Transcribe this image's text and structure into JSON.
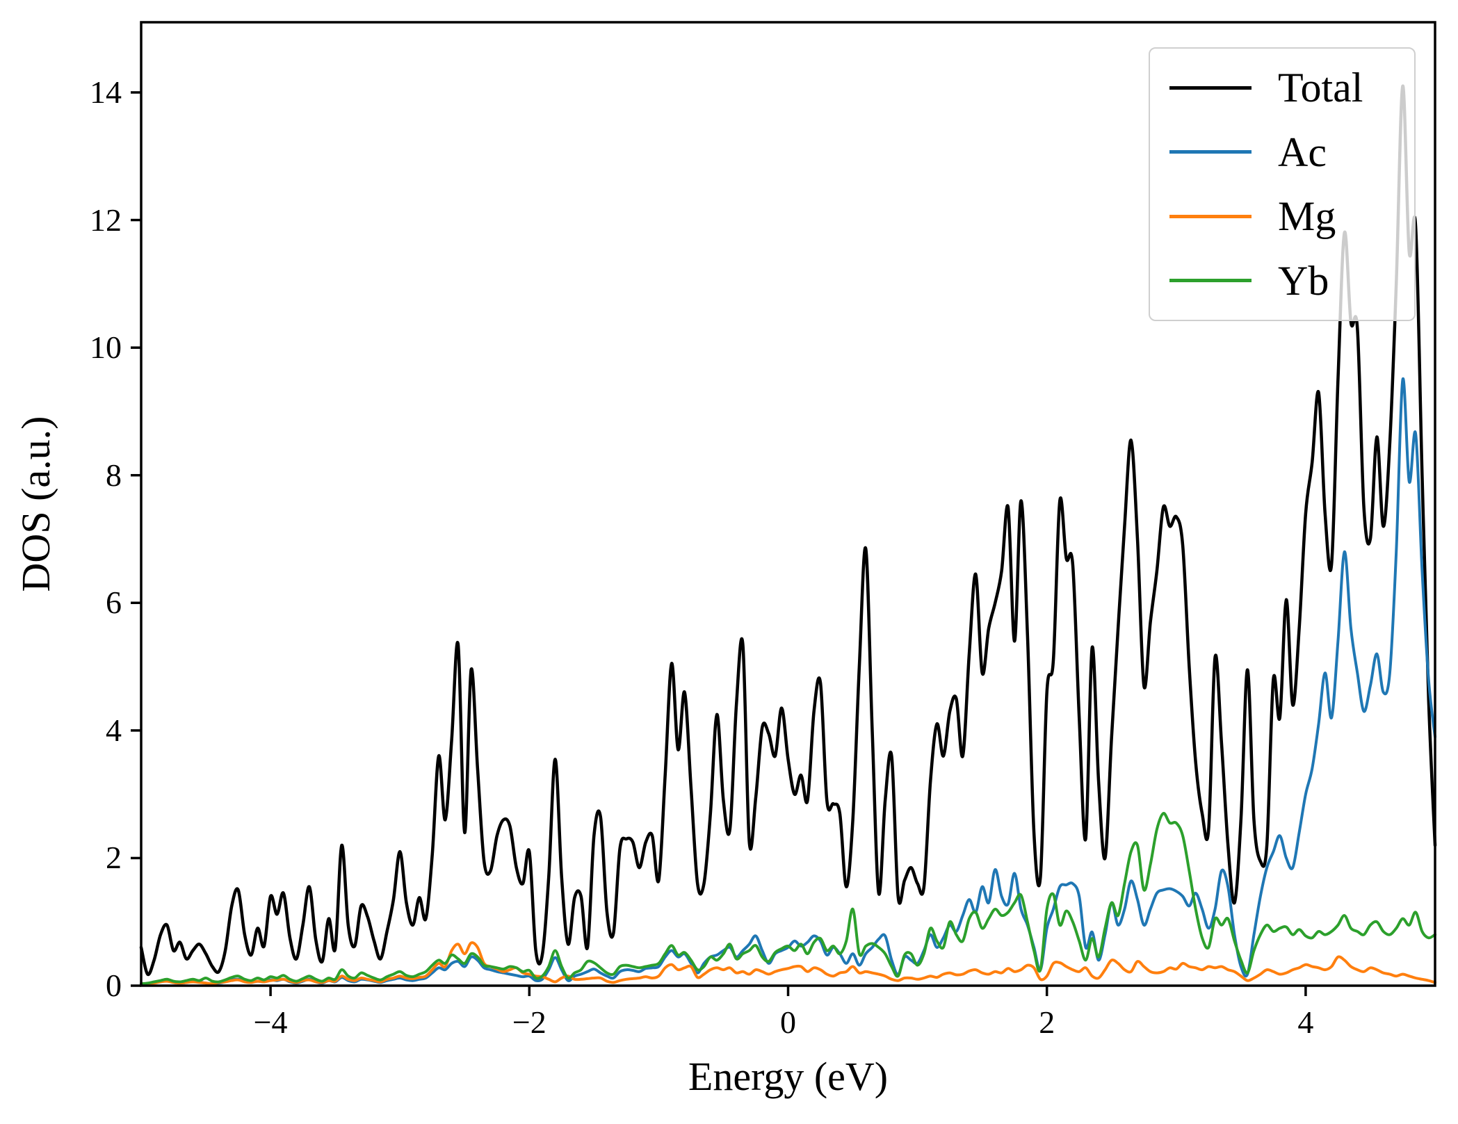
{
  "figure": {
    "background": "#ffffff"
  },
  "chart_data": {
    "type": "line",
    "title": "",
    "xlabel": "Energy (eV)",
    "ylabel": "DOS (a.u.)",
    "xlim": [
      -5,
      5
    ],
    "ylim": [
      0,
      15.1
    ],
    "xticks": [
      -4,
      -2,
      0,
      2,
      4
    ],
    "xtick_labels": [
      "−4",
      "−2",
      "0",
      "2",
      "4"
    ],
    "yticks": [
      0,
      2,
      4,
      6,
      8,
      10,
      12,
      14
    ],
    "ytick_labels": [
      "0",
      "2",
      "4",
      "6",
      "8",
      "10",
      "12",
      "14"
    ],
    "grid": false,
    "legend": {
      "position": "upper right",
      "frame": true,
      "entries": [
        "Total",
        "Ac",
        "Mg",
        "Yb"
      ]
    },
    "x_start": -5.0,
    "x_step": 0.05,
    "n_points": 201,
    "series": [
      {
        "name": "Total",
        "color": "#000000",
        "line_width": 4.5,
        "values": [
          0.6,
          0.18,
          0.4,
          0.8,
          0.95,
          0.55,
          0.68,
          0.42,
          0.55,
          0.65,
          0.5,
          0.3,
          0.22,
          0.55,
          1.25,
          1.5,
          0.8,
          0.48,
          0.9,
          0.62,
          1.4,
          1.12,
          1.45,
          0.75,
          0.42,
          0.95,
          1.55,
          0.72,
          0.38,
          1.05,
          0.58,
          2.2,
          0.95,
          0.62,
          1.25,
          1.08,
          0.7,
          0.42,
          0.85,
          1.35,
          2.1,
          1.3,
          0.95,
          1.38,
          1.05,
          2.05,
          3.6,
          2.6,
          3.85,
          5.35,
          2.4,
          4.95,
          3.4,
          1.95,
          1.8,
          2.35,
          2.6,
          2.5,
          1.85,
          1.6,
          2.1,
          0.55,
          0.48,
          1.7,
          3.55,
          1.7,
          0.65,
          1.38,
          1.4,
          0.6,
          2.35,
          2.65,
          1.15,
          0.82,
          2.15,
          2.3,
          2.25,
          1.85,
          2.25,
          2.35,
          1.65,
          3.3,
          5.05,
          3.7,
          4.6,
          3.1,
          1.6,
          1.6,
          2.7,
          4.25,
          2.9,
          2.45,
          4.4,
          5.35,
          2.25,
          2.95,
          4.05,
          3.95,
          3.6,
          4.35,
          3.55,
          3.0,
          3.3,
          2.9,
          4.3,
          4.75,
          2.9,
          2.85,
          2.7,
          1.55,
          2.6,
          5.0,
          6.85,
          4.0,
          1.45,
          2.9,
          3.6,
          1.4,
          1.65,
          1.85,
          1.6,
          1.55,
          3.2,
          4.1,
          3.6,
          4.3,
          4.5,
          3.6,
          5.2,
          6.45,
          4.9,
          5.6,
          6.0,
          6.5,
          7.5,
          5.4,
          7.6,
          5.5,
          2.4,
          1.7,
          4.6,
          5.1,
          7.6,
          6.7,
          6.6,
          4.2,
          2.3,
          5.3,
          3.2,
          2.0,
          3.9,
          5.6,
          7.2,
          8.55,
          7.0,
          4.7,
          5.7,
          6.5,
          7.5,
          7.2,
          7.35,
          6.9,
          5.0,
          3.5,
          2.7,
          2.45,
          5.15,
          3.8,
          2.2,
          1.3,
          2.6,
          4.95,
          2.6,
          1.95,
          2.2,
          4.8,
          4.2,
          6.05,
          4.4,
          5.6,
          7.4,
          8.2,
          9.3,
          7.4,
          6.6,
          9.5,
          11.8,
          10.4,
          10.3,
          7.5,
          7.0,
          8.6,
          7.2,
          8.5,
          11.0,
          14.1,
          11.5,
          11.9,
          8.0,
          4.5,
          2.2
        ]
      },
      {
        "name": "Ac",
        "color": "#1f77b4",
        "line_width": 4,
        "values": [
          0.02,
          0.03,
          0.05,
          0.06,
          0.08,
          0.05,
          0.04,
          0.05,
          0.07,
          0.06,
          0.04,
          0.03,
          0.04,
          0.06,
          0.09,
          0.1,
          0.07,
          0.05,
          0.07,
          0.06,
          0.09,
          0.08,
          0.1,
          0.06,
          0.04,
          0.07,
          0.1,
          0.06,
          0.04,
          0.08,
          0.06,
          0.13,
          0.08,
          0.06,
          0.1,
          0.09,
          0.07,
          0.05,
          0.08,
          0.1,
          0.12,
          0.09,
          0.08,
          0.1,
          0.12,
          0.2,
          0.28,
          0.25,
          0.35,
          0.38,
          0.3,
          0.45,
          0.4,
          0.28,
          0.25,
          0.22,
          0.2,
          0.18,
          0.16,
          0.14,
          0.15,
          0.08,
          0.1,
          0.25,
          0.44,
          0.25,
          0.08,
          0.15,
          0.18,
          0.22,
          0.26,
          0.2,
          0.15,
          0.12,
          0.22,
          0.25,
          0.24,
          0.22,
          0.27,
          0.28,
          0.3,
          0.45,
          0.55,
          0.45,
          0.5,
          0.35,
          0.2,
          0.35,
          0.45,
          0.48,
          0.55,
          0.6,
          0.45,
          0.55,
          0.65,
          0.78,
          0.55,
          0.35,
          0.5,
          0.55,
          0.6,
          0.7,
          0.62,
          0.68,
          0.78,
          0.7,
          0.48,
          0.6,
          0.5,
          0.35,
          0.5,
          0.32,
          0.5,
          0.6,
          0.73,
          0.78,
          0.4,
          0.18,
          0.45,
          0.4,
          0.35,
          0.55,
          0.8,
          0.6,
          0.75,
          0.95,
          0.85,
          1.1,
          1.35,
          1.15,
          1.55,
          1.3,
          1.82,
          1.4,
          1.28,
          1.76,
          1.2,
          0.95,
          0.6,
          0.25,
          0.9,
          1.2,
          1.55,
          1.58,
          1.6,
          1.4,
          0.6,
          0.84,
          0.4,
          0.8,
          1.3,
          0.95,
          1.2,
          1.64,
          1.35,
          0.95,
          1.2,
          1.45,
          1.5,
          1.52,
          1.48,
          1.4,
          1.25,
          1.45,
          1.2,
          0.9,
          1.2,
          1.8,
          1.55,
          0.8,
          0.3,
          0.18,
          0.8,
          1.4,
          1.85,
          2.1,
          2.35,
          2.0,
          1.85,
          2.4,
          3.0,
          3.4,
          4.1,
          4.9,
          4.2,
          5.4,
          6.8,
          5.6,
          4.9,
          4.3,
          4.7,
          5.2,
          4.6,
          4.9,
          6.8,
          9.5,
          7.9,
          8.65,
          6.5,
          4.8,
          3.9
        ]
      },
      {
        "name": "Mg",
        "color": "#ff7f0e",
        "line_width": 4,
        "values": [
          0.02,
          0.03,
          0.04,
          0.06,
          0.07,
          0.05,
          0.04,
          0.05,
          0.06,
          0.05,
          0.04,
          0.03,
          0.05,
          0.06,
          0.08,
          0.09,
          0.06,
          0.05,
          0.07,
          0.06,
          0.08,
          0.09,
          0.1,
          0.07,
          0.05,
          0.08,
          0.09,
          0.06,
          0.05,
          0.08,
          0.07,
          0.15,
          0.1,
          0.08,
          0.12,
          0.1,
          0.08,
          0.06,
          0.1,
          0.12,
          0.15,
          0.12,
          0.11,
          0.13,
          0.15,
          0.25,
          0.35,
          0.3,
          0.55,
          0.65,
          0.5,
          0.67,
          0.6,
          0.35,
          0.3,
          0.26,
          0.22,
          0.25,
          0.28,
          0.2,
          0.18,
          0.15,
          0.14,
          0.1,
          0.06,
          0.12,
          0.15,
          0.1,
          0.1,
          0.11,
          0.12,
          0.12,
          0.07,
          0.05,
          0.08,
          0.1,
          0.11,
          0.12,
          0.14,
          0.12,
          0.15,
          0.28,
          0.33,
          0.25,
          0.28,
          0.3,
          0.13,
          0.18,
          0.25,
          0.28,
          0.25,
          0.28,
          0.2,
          0.22,
          0.18,
          0.25,
          0.22,
          0.18,
          0.22,
          0.25,
          0.27,
          0.3,
          0.3,
          0.22,
          0.28,
          0.25,
          0.18,
          0.15,
          0.2,
          0.22,
          0.3,
          0.2,
          0.22,
          0.2,
          0.18,
          0.15,
          0.1,
          0.08,
          0.12,
          0.12,
          0.1,
          0.12,
          0.15,
          0.13,
          0.18,
          0.2,
          0.17,
          0.18,
          0.23,
          0.25,
          0.2,
          0.18,
          0.22,
          0.2,
          0.27,
          0.22,
          0.25,
          0.32,
          0.28,
          0.1,
          0.15,
          0.35,
          0.36,
          0.3,
          0.25,
          0.22,
          0.28,
          0.15,
          0.12,
          0.25,
          0.4,
          0.35,
          0.25,
          0.22,
          0.38,
          0.3,
          0.22,
          0.2,
          0.22,
          0.28,
          0.26,
          0.35,
          0.3,
          0.28,
          0.25,
          0.3,
          0.28,
          0.3,
          0.25,
          0.22,
          0.15,
          0.08,
          0.12,
          0.18,
          0.25,
          0.22,
          0.18,
          0.2,
          0.25,
          0.28,
          0.33,
          0.3,
          0.28,
          0.25,
          0.3,
          0.45,
          0.4,
          0.3,
          0.25,
          0.22,
          0.28,
          0.25,
          0.2,
          0.18,
          0.15,
          0.18,
          0.15,
          0.12,
          0.1,
          0.08,
          0.05
        ]
      },
      {
        "name": "Yb",
        "color": "#2ca02c",
        "line_width": 4,
        "values": [
          0.03,
          0.04,
          0.06,
          0.08,
          0.1,
          0.07,
          0.06,
          0.08,
          0.1,
          0.08,
          0.12,
          0.07,
          0.06,
          0.09,
          0.13,
          0.15,
          0.1,
          0.08,
          0.12,
          0.09,
          0.14,
          0.12,
          0.16,
          0.1,
          0.07,
          0.11,
          0.15,
          0.1,
          0.07,
          0.12,
          0.1,
          0.25,
          0.15,
          0.12,
          0.2,
          0.16,
          0.12,
          0.09,
          0.14,
          0.18,
          0.22,
          0.16,
          0.14,
          0.18,
          0.22,
          0.32,
          0.4,
          0.35,
          0.48,
          0.42,
          0.35,
          0.5,
          0.45,
          0.32,
          0.3,
          0.28,
          0.26,
          0.3,
          0.28,
          0.22,
          0.24,
          0.12,
          0.15,
          0.3,
          0.55,
          0.3,
          0.12,
          0.2,
          0.25,
          0.38,
          0.36,
          0.28,
          0.2,
          0.18,
          0.3,
          0.32,
          0.3,
          0.28,
          0.3,
          0.32,
          0.35,
          0.5,
          0.63,
          0.48,
          0.52,
          0.4,
          0.25,
          0.3,
          0.45,
          0.4,
          0.5,
          0.65,
          0.42,
          0.5,
          0.55,
          0.63,
          0.45,
          0.38,
          0.52,
          0.58,
          0.62,
          0.55,
          0.65,
          0.5,
          0.68,
          0.74,
          0.55,
          0.62,
          0.5,
          0.7,
          1.2,
          0.5,
          0.62,
          0.66,
          0.6,
          0.5,
          0.3,
          0.15,
          0.48,
          0.5,
          0.32,
          0.5,
          0.9,
          0.7,
          0.6,
          1.0,
          0.8,
          0.7,
          1.05,
          1.15,
          0.9,
          1.05,
          1.2,
          1.1,
          1.15,
          1.3,
          1.42,
          1.0,
          0.55,
          0.25,
          1.2,
          1.43,
          0.95,
          1.17,
          1.0,
          0.7,
          0.4,
          0.74,
          0.45,
          0.9,
          1.3,
          1.1,
          1.6,
          2.1,
          2.2,
          1.5,
          1.9,
          2.45,
          2.7,
          2.55,
          2.55,
          2.35,
          1.8,
          1.2,
          0.75,
          0.6,
          1.05,
          0.95,
          1.05,
          0.7,
          0.4,
          0.2,
          0.55,
          0.8,
          0.95,
          0.85,
          0.9,
          0.92,
          0.8,
          0.88,
          0.78,
          0.75,
          0.85,
          0.8,
          0.85,
          0.95,
          1.1,
          0.9,
          0.85,
          0.8,
          0.95,
          1.0,
          0.85,
          0.8,
          0.9,
          1.05,
          0.95,
          1.15,
          0.85,
          0.75,
          0.8
        ]
      }
    ]
  }
}
